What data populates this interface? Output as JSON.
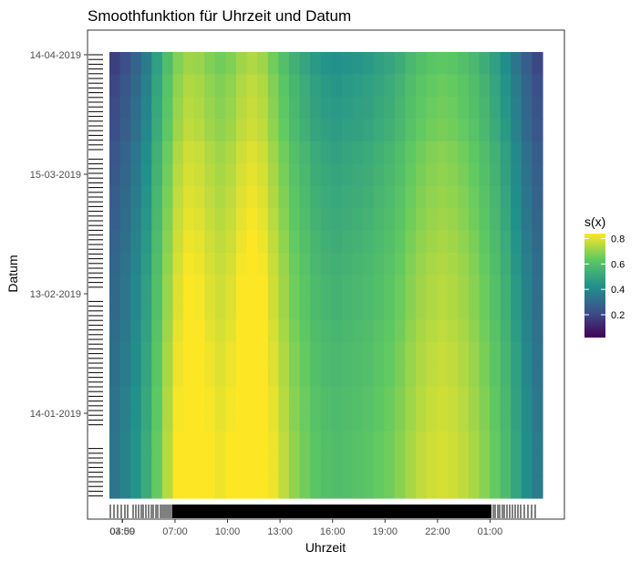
{
  "chart_data": {
    "type": "heatmap",
    "title": "Smoothfunktion für Uhrzeit und Datum",
    "xlabel": "Uhrzeit",
    "ylabel": "Datum",
    "x_ticks": [
      "04:00",
      "07:00",
      "10:00",
      "13:00",
      "16:00",
      "19:00",
      "22:00",
      "01:00",
      "03:59"
    ],
    "y_ticks": [
      "14-04-2019",
      "15-03-2019",
      "13-02-2019",
      "14-01-2019"
    ],
    "legend": {
      "title": "s(x)",
      "position": "right",
      "ticks": [
        "0.8",
        "0.6",
        "0.4",
        "0.2"
      ],
      "tick_values": [
        0.8,
        0.6,
        0.4,
        0.2
      ],
      "range": [
        0.02,
        0.84
      ]
    },
    "x_start_hour": 3.25,
    "x_end_hour": 28.0,
    "x_cell_hours": 0.625,
    "y_rows": 20,
    "column_values": [
      0.22,
      0.26,
      0.32,
      0.4,
      0.52,
      0.63,
      0.72,
      0.76,
      0.75,
      0.72,
      0.7,
      0.72,
      0.76,
      0.78,
      0.76,
      0.7,
      0.64,
      0.58,
      0.54,
      0.5,
      0.48,
      0.47,
      0.48,
      0.49,
      0.5,
      0.52,
      0.54,
      0.57,
      0.61,
      0.64,
      0.66,
      0.67,
      0.66,
      0.64,
      0.61,
      0.57,
      0.52,
      0.46,
      0.38,
      0.3,
      0.24
    ],
    "row_effects": [
      -0.04,
      -0.02,
      -0.01,
      0.0,
      0.02,
      0.03,
      0.04,
      0.05,
      0.06,
      0.07,
      0.08,
      0.08,
      0.09,
      0.1,
      0.1,
      0.11,
      0.11,
      0.12,
      0.12,
      0.12
    ],
    "colorscale": [
      "#440154",
      "#3b528b",
      "#21918c",
      "#5ec962",
      "#fde725"
    ],
    "background": "#ffffff",
    "border_color": "#333333"
  }
}
